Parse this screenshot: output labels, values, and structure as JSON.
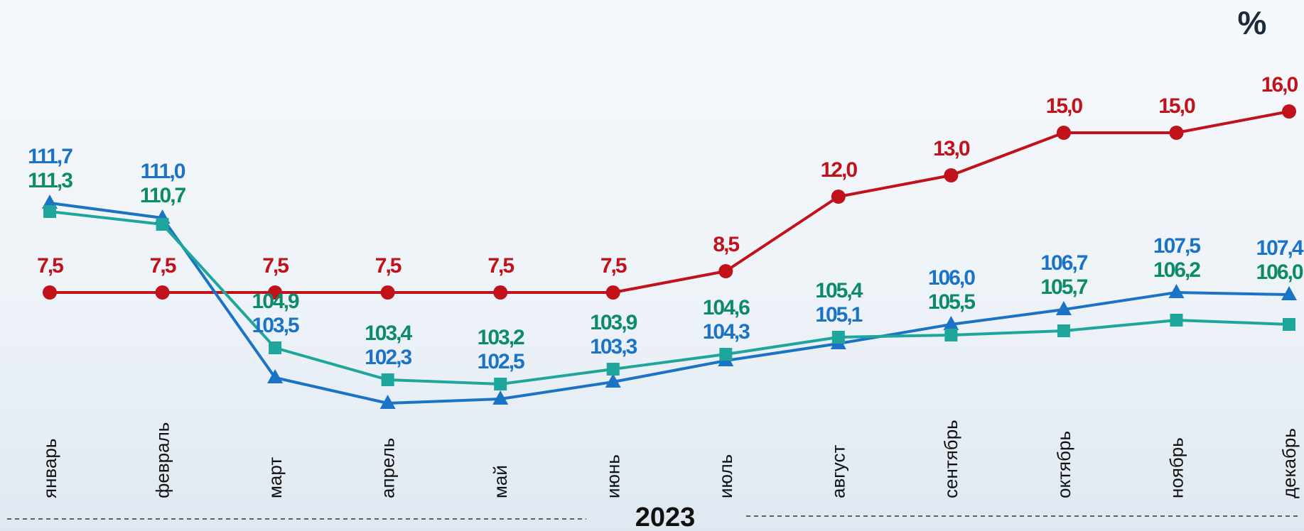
{
  "chart_data": {
    "type": "line",
    "unit_label": "%",
    "x_group_label": "2023",
    "categories": [
      "январь",
      "февраль",
      "март",
      "апрель",
      "май",
      "июнь",
      "июль",
      "август",
      "сентябрь",
      "октябрь",
      "ноябрь",
      "декабрь"
    ],
    "ylim": [
      -2,
      18
    ],
    "y2lim": [
      98,
      118
    ],
    "series": [
      {
        "color": "#c1121c",
        "label_color": "#c1121c",
        "marker": "circle",
        "values": [
          7.5,
          7.5,
          7.5,
          7.5,
          7.5,
          7.5,
          8.5,
          12.0,
          13.0,
          15.0,
          15.0,
          16.0
        ],
        "value_labels": [
          "7,5",
          "7,5",
          "7,5",
          "7,5",
          "7,5",
          "7,5",
          "8,5",
          "12,0",
          "13,0",
          "15,0",
          "15,0",
          "16,0"
        ]
      },
      {
        "color": "#1b73c6",
        "label_color": "#1b73c6",
        "marker": "triangle",
        "axis": "y2",
        "values": [
          111.7,
          111.0,
          103.5,
          102.3,
          102.5,
          103.3,
          104.3,
          105.1,
          106.0,
          106.7,
          107.5,
          107.4
        ],
        "value_labels": [
          "111,7",
          "111,0",
          "103,5",
          "102,3",
          "102,5",
          "103,3",
          "104,3",
          "105,1",
          "106,0",
          "106,7",
          "107,5",
          "107,4"
        ]
      },
      {
        "color": "#1fa69c",
        "label_color": "#0d8a68",
        "marker": "square",
        "axis": "y2",
        "values": [
          111.3,
          110.7,
          104.9,
          103.4,
          103.2,
          103.9,
          104.6,
          105.4,
          105.5,
          105.7,
          106.2,
          106.0
        ],
        "value_labels": [
          "111,3",
          "110,7",
          "104,9",
          "103,4",
          "103,2",
          "103,9",
          "104,6",
          "105,4",
          "105,5",
          "105,7",
          "106,2",
          "106,0"
        ]
      }
    ]
  }
}
